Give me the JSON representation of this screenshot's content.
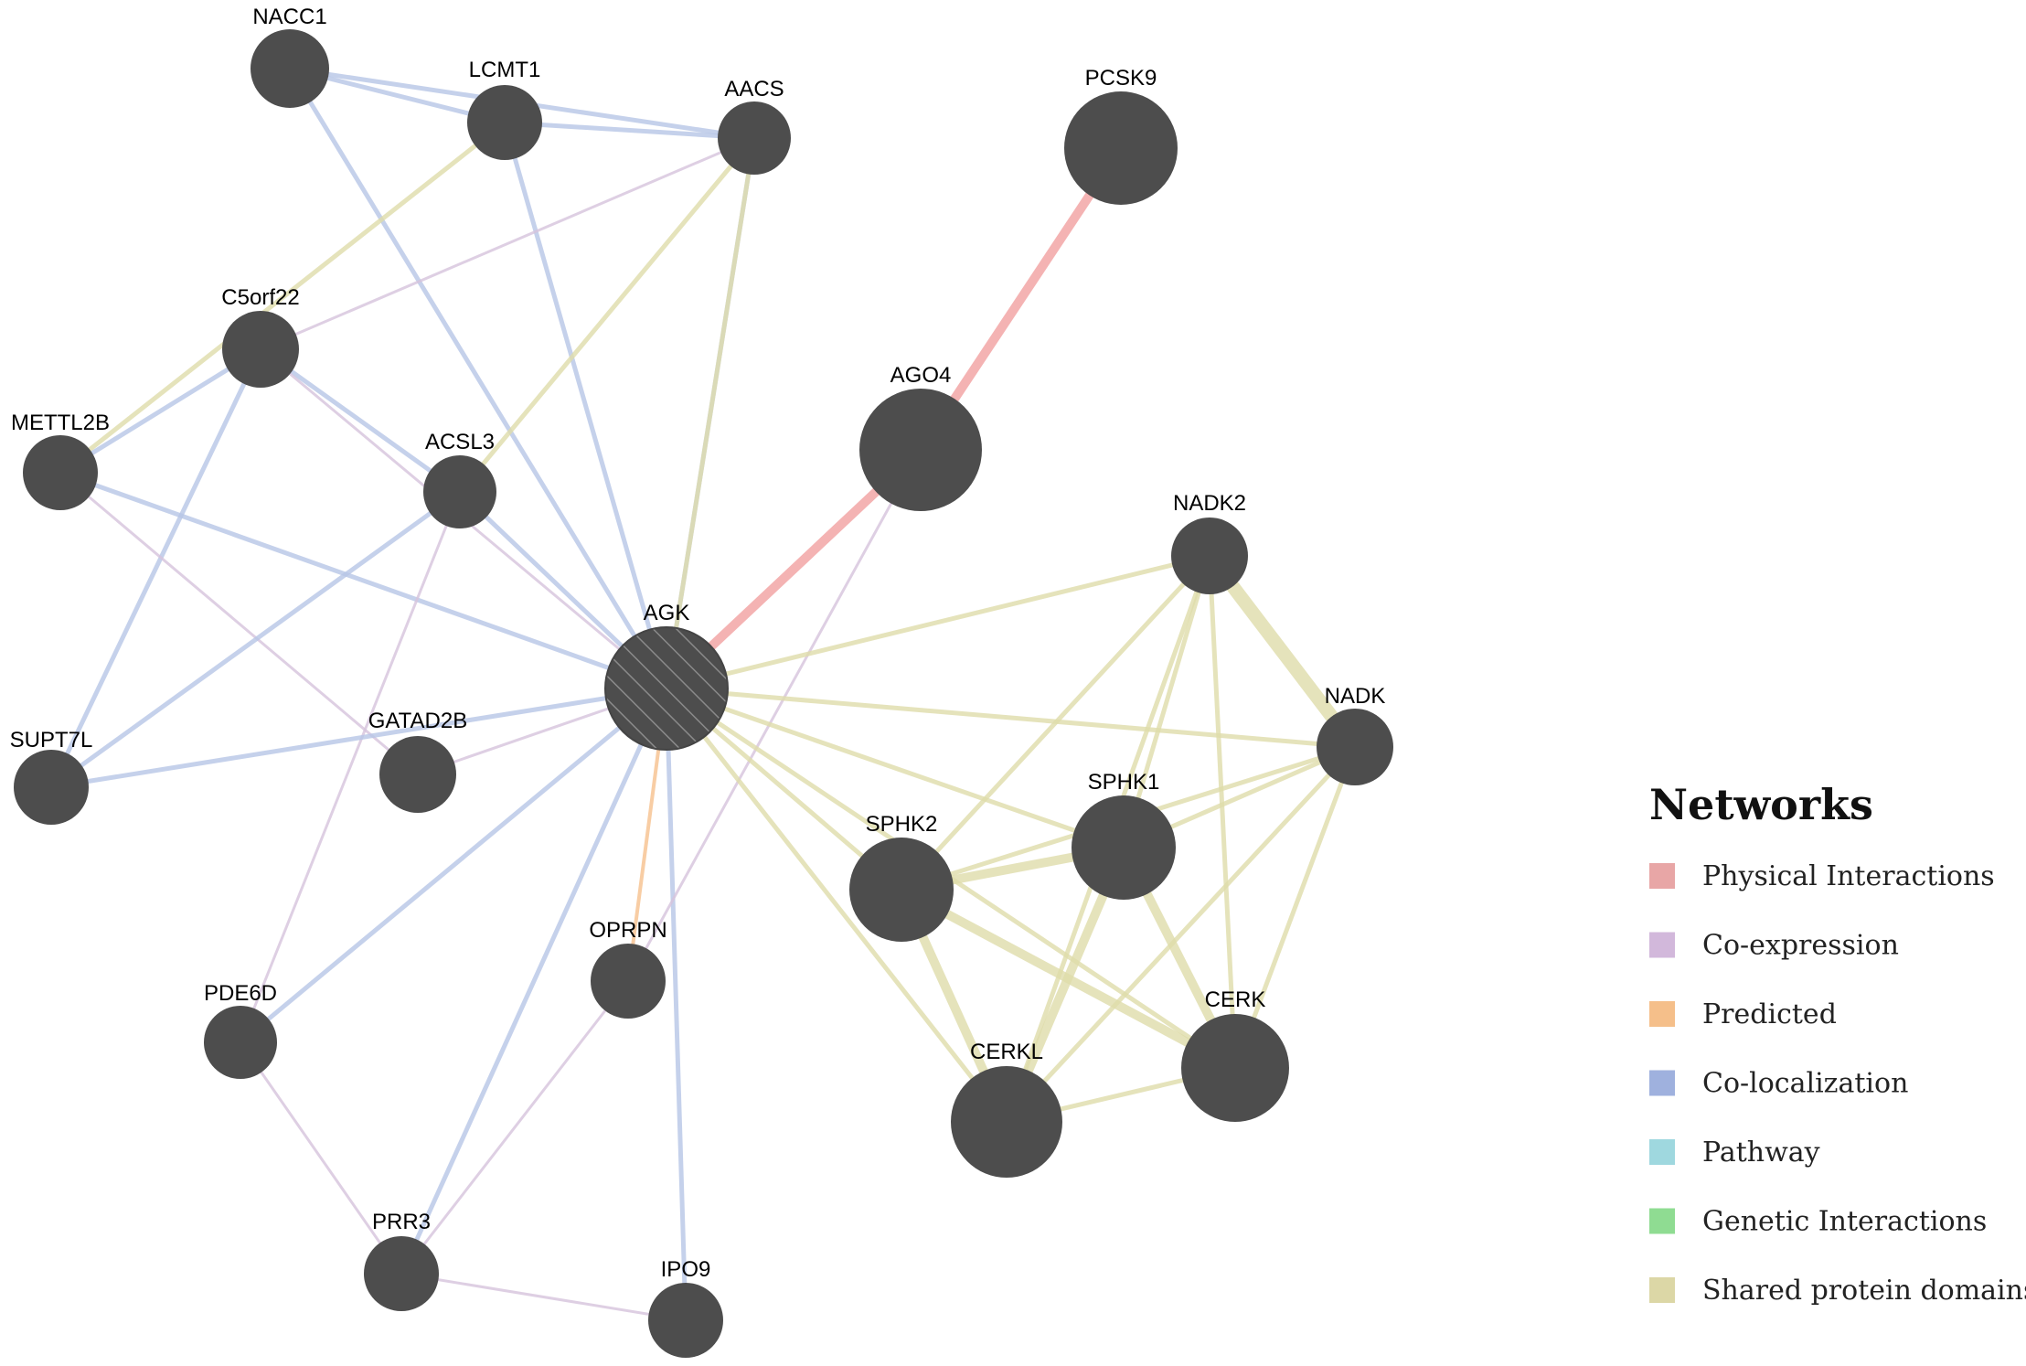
{
  "network": {
    "edge_colors": {
      "physical": "#f2a6a6",
      "coexpression": "#d6c3dc",
      "colocalization": "#b7c5e6",
      "shared_domains": "#dedcaa",
      "predicted": "#f6c08d"
    },
    "node_color": "#4d4d4d",
    "nodes": [
      {
        "id": "NACC1",
        "label": "NACC1"
      },
      {
        "id": "LCMT1",
        "label": "LCMT1"
      },
      {
        "id": "AACS",
        "label": "AACS"
      },
      {
        "id": "PCSK9",
        "label": "PCSK9"
      },
      {
        "id": "C5orf22",
        "label": "C5orf22"
      },
      {
        "id": "METTL2B",
        "label": "METTL2B"
      },
      {
        "id": "ACSL3",
        "label": "ACSL3"
      },
      {
        "id": "AGO4",
        "label": "AGO4"
      },
      {
        "id": "NADK2",
        "label": "NADK2"
      },
      {
        "id": "AGK",
        "label": "AGK",
        "query": true
      },
      {
        "id": "NADK",
        "label": "NADK"
      },
      {
        "id": "SUPT7L",
        "label": "SUPT7L"
      },
      {
        "id": "GATAD2B",
        "label": "GATAD2B"
      },
      {
        "id": "SPHK1",
        "label": "SPHK1"
      },
      {
        "id": "SPHK2",
        "label": "SPHK2"
      },
      {
        "id": "OPRPN",
        "label": "OPRPN"
      },
      {
        "id": "PDE6D",
        "label": "PDE6D"
      },
      {
        "id": "CERK",
        "label": "CERK"
      },
      {
        "id": "CERKL",
        "label": "CERKL"
      },
      {
        "id": "PRR3",
        "label": "PRR3"
      },
      {
        "id": "IPO9",
        "label": "IPO9"
      }
    ],
    "edges": [
      {
        "source": "PCSK9",
        "target": "AGO4",
        "type": "physical"
      },
      {
        "source": "AGO4",
        "target": "AGK",
        "type": "physical"
      },
      {
        "source": "NACC1",
        "target": "LCMT1",
        "type": "colocalization"
      },
      {
        "source": "NACC1",
        "target": "AACS",
        "type": "colocalization"
      },
      {
        "source": "LCMT1",
        "target": "AACS",
        "type": "colocalization"
      },
      {
        "source": "NACC1",
        "target": "AGK",
        "type": "colocalization"
      },
      {
        "source": "LCMT1",
        "target": "AGK",
        "type": "colocalization"
      },
      {
        "source": "AACS",
        "target": "AGK",
        "type": "colocalization"
      },
      {
        "source": "LCMT1",
        "target": "METTL2B",
        "type": "shared_domains"
      },
      {
        "source": "AACS",
        "target": "C5orf22",
        "type": "coexpression"
      },
      {
        "source": "AACS",
        "target": "ACSL3",
        "type": "shared_domains"
      },
      {
        "source": "AACS",
        "target": "AGK",
        "type": "shared_domains"
      },
      {
        "source": "C5orf22",
        "target": "METTL2B",
        "type": "colocalization"
      },
      {
        "source": "C5orf22",
        "target": "ACSL3",
        "type": "colocalization"
      },
      {
        "source": "C5orf22",
        "target": "SUPT7L",
        "type": "colocalization"
      },
      {
        "source": "C5orf22",
        "target": "AGK",
        "type": "coexpression"
      },
      {
        "source": "METTL2B",
        "target": "AGK",
        "type": "colocalization"
      },
      {
        "source": "METTL2B",
        "target": "GATAD2B",
        "type": "coexpression"
      },
      {
        "source": "ACSL3",
        "target": "AGK",
        "type": "colocalization"
      },
      {
        "source": "ACSL3",
        "target": "SUPT7L",
        "type": "colocalization"
      },
      {
        "source": "ACSL3",
        "target": "PDE6D",
        "type": "coexpression"
      },
      {
        "source": "SUPT7L",
        "target": "AGK",
        "type": "colocalization"
      },
      {
        "source": "GATAD2B",
        "target": "AGK",
        "type": "coexpression"
      },
      {
        "source": "PDE6D",
        "target": "AGK",
        "type": "colocalization"
      },
      {
        "source": "PDE6D",
        "target": "PRR3",
        "type": "coexpression"
      },
      {
        "source": "PRR3",
        "target": "AGK",
        "type": "colocalization"
      },
      {
        "source": "PRR3",
        "target": "OPRPN",
        "type": "coexpression"
      },
      {
        "source": "PRR3",
        "target": "IPO9",
        "type": "coexpression"
      },
      {
        "source": "IPO9",
        "target": "AGK",
        "type": "colocalization"
      },
      {
        "source": "OPRPN",
        "target": "AGK",
        "type": "predicted"
      },
      {
        "source": "OPRPN",
        "target": "AGO4",
        "type": "coexpression"
      },
      {
        "source": "AGK",
        "target": "NADK2",
        "type": "shared_domains"
      },
      {
        "source": "AGK",
        "target": "NADK",
        "type": "shared_domains"
      },
      {
        "source": "AGK",
        "target": "SPHK1",
        "type": "shared_domains"
      },
      {
        "source": "AGK",
        "target": "SPHK2",
        "type": "shared_domains"
      },
      {
        "source": "AGK",
        "target": "CERK",
        "type": "shared_domains"
      },
      {
        "source": "AGK",
        "target": "CERKL",
        "type": "shared_domains"
      },
      {
        "source": "NADK2",
        "target": "NADK",
        "type": "shared_domains",
        "weight": 3
      },
      {
        "source": "NADK2",
        "target": "SPHK1",
        "type": "shared_domains"
      },
      {
        "source": "NADK2",
        "target": "SPHK2",
        "type": "shared_domains"
      },
      {
        "source": "NADK2",
        "target": "CERK",
        "type": "shared_domains"
      },
      {
        "source": "NADK2",
        "target": "CERKL",
        "type": "shared_domains"
      },
      {
        "source": "NADK",
        "target": "SPHK1",
        "type": "shared_domains"
      },
      {
        "source": "NADK",
        "target": "SPHK2",
        "type": "shared_domains"
      },
      {
        "source": "NADK",
        "target": "CERK",
        "type": "shared_domains"
      },
      {
        "source": "NADK",
        "target": "CERKL",
        "type": "shared_domains"
      },
      {
        "source": "SPHK1",
        "target": "SPHK2",
        "type": "shared_domains",
        "weight": 2
      },
      {
        "source": "SPHK1",
        "target": "CERK",
        "type": "shared_domains",
        "weight": 2
      },
      {
        "source": "SPHK1",
        "target": "CERKL",
        "type": "shared_domains",
        "weight": 2
      },
      {
        "source": "SPHK2",
        "target": "CERK",
        "type": "shared_domains",
        "weight": 2
      },
      {
        "source": "SPHK2",
        "target": "CERKL",
        "type": "shared_domains",
        "weight": 2
      },
      {
        "source": "CERK",
        "target": "CERKL",
        "type": "shared_domains"
      }
    ]
  },
  "legend": {
    "title": "Networks",
    "items": [
      {
        "label": "Physical Interactions",
        "color": "#e8a6a6"
      },
      {
        "label": "Co-expression",
        "color": "#d2b8db"
      },
      {
        "label": "Predicted",
        "color": "#f5bf8a"
      },
      {
        "label": "Co-localization",
        "color": "#9fb1de"
      },
      {
        "label": "Pathway",
        "color": "#9fd8df"
      },
      {
        "label": "Genetic Interactions",
        "color": "#8fdc92"
      },
      {
        "label": "Shared protein domains",
        "color": "#dcd7a6"
      }
    ]
  }
}
